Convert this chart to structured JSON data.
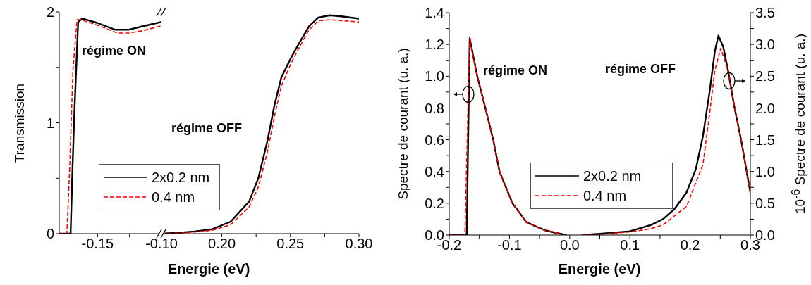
{
  "chart_data": [
    {
      "type": "line",
      "ylabel": "Transmission",
      "xlim": [
        -0.18,
        -0.1
      ],
      "xticks": [
        -0.15,
        {
          "value": -0.125,
          "label": null
        },
        {
          "value": -0.1,
          "label": "-0.10"
        }
      ],
      "ylim": [
        0,
        2
      ],
      "yticks": [
        0,
        {
          "value": 0.5,
          "label": null
        },
        1,
        {
          "value": 1.5,
          "label": null
        },
        2
      ],
      "marker": "none",
      "legend": "bottom right",
      "annotations": [
        "régime ON"
      ],
      "series": [
        {
          "name": "2x0.2 nm",
          "color": "#000000",
          "line_style": "solid",
          "x": [
            -0.18,
            -0.1711,
            -0.1698,
            -0.1683,
            -0.1652,
            -0.162,
            -0.15,
            -0.1365,
            -0.1254,
            -0.115,
            -0.1
          ],
          "values": [
            0,
            0,
            0.52,
            1.05,
            1.91,
            1.94,
            1.9,
            1.84,
            1.84,
            1.87,
            1.91
          ]
        },
        {
          "name": "0.4 nm",
          "color": "#ff0000",
          "line_style": "dashed",
          "x": [
            -0.18,
            -0.174,
            -0.1717,
            -0.1693,
            -0.1661,
            -0.163,
            -0.15,
            -0.1346,
            -0.1254,
            -0.115,
            -0.1
          ],
          "values": [
            0,
            0,
            0.63,
            1.47,
            1.93,
            1.93,
            1.88,
            1.81,
            1.81,
            1.83,
            1.875
          ]
        }
      ]
    },
    {
      "type": "line",
      "xlabel": "Energie (eV)",
      "xlim": [
        0.156,
        0.3
      ],
      "xticks": [
        {
          "value": 0.2,
          "label": "0.20"
        },
        {
          "value": 0.225,
          "label": null
        },
        0.25,
        {
          "value": 0.275,
          "label": null
        },
        {
          "value": 0.3,
          "label": "0.30"
        }
      ],
      "ylim": [
        0,
        2
      ],
      "yticks": [
        0,
        1,
        2
      ],
      "tick_labels": "x",
      "marker": "none",
      "annotations": [
        "régime OFF"
      ],
      "series": [
        {
          "color": "#000000",
          "line_style": "solid",
          "x": [
            0.156,
            0.17,
            0.18,
            0.193,
            0.2064,
            0.2199,
            0.2266,
            0.2333,
            0.2384,
            0.2434,
            0.2502,
            0.2569,
            0.2636,
            0.2704,
            0.2788,
            0.2872,
            0.3
          ],
          "values": [
            0,
            0.01,
            0.02,
            0.04,
            0.108,
            0.29,
            0.5,
            0.84,
            1.16,
            1.41,
            1.58,
            1.73,
            1.87,
            1.95,
            1.97,
            1.96,
            1.94
          ]
        },
        {
          "color": "#ff0000",
          "line_style": "dashed",
          "x": [
            0.156,
            0.17,
            0.18,
            0.193,
            0.2064,
            0.2199,
            0.2266,
            0.2333,
            0.2384,
            0.2434,
            0.2502,
            0.2569,
            0.2636,
            0.2704,
            0.2788,
            0.3
          ],
          "values": [
            0,
            0.005,
            0.015,
            0.03,
            0.08,
            0.24,
            0.42,
            0.74,
            1.06,
            1.33,
            1.53,
            1.69,
            1.84,
            1.92,
            1.93,
            1.91
          ]
        }
      ]
    },
    {
      "type": "line",
      "xlabel": "Energie (eV)",
      "ylabel": "Spectre de courant (u. a.)",
      "y2label": "10$^{-6}$ Spectre de courant (u. a.)",
      "xlim": [
        -0.2,
        0.3
      ],
      "xticks": [
        -0.2,
        {
          "value": -0.15,
          "label": null
        },
        -0.1,
        {
          "value": -0.05,
          "label": null
        },
        {
          "value": 0,
          "label": "0.0"
        },
        {
          "value": 0.05,
          "label": null
        },
        0.1,
        {
          "value": 0.15,
          "label": null
        },
        0.2,
        {
          "value": 0.25,
          "label": null
        },
        0.3
      ],
      "ylim": [
        0,
        1.4
      ],
      "yticks": [
        {
          "value": 0,
          "label": "0.0"
        },
        {
          "value": 0.1,
          "label": null
        },
        0.2,
        {
          "value": 0.3,
          "label": null
        },
        0.4,
        {
          "value": 0.5,
          "label": null
        },
        0.6,
        {
          "value": 0.7,
          "label": null
        },
        0.8,
        {
          "value": 0.9,
          "label": null
        },
        {
          "value": 1,
          "label": "1.0"
        },
        {
          "value": 1.1,
          "label": null
        },
        1.2,
        {
          "value": 1.3,
          "label": null
        },
        1.4
      ],
      "y2lim": [
        0,
        3.5
      ],
      "y2ticks": [
        {
          "value": 0,
          "label": "0.0"
        },
        {
          "value": 0.25,
          "label": null
        },
        0.5,
        {
          "value": 0.75,
          "label": null
        },
        {
          "value": 1,
          "label": "1.0"
        },
        {
          "value": 1.25,
          "label": null
        },
        1.5,
        {
          "value": 1.75,
          "label": null
        },
        {
          "value": 2,
          "label": "2.0"
        },
        {
          "value": 2.25,
          "label": null
        },
        2.5,
        {
          "value": 2.75,
          "label": null
        },
        {
          "value": 3,
          "label": "3.0"
        },
        {
          "value": 3.25,
          "label": null
        },
        3.5
      ],
      "marker": "none",
      "legend": "bottom",
      "annotations": [
        "régime ON",
        "régime OFF"
      ],
      "series": [
        {
          "name": "2x0.2 nm",
          "color": "#000000",
          "line_style": "solid",
          "x": [
            -0.2,
            -0.171,
            -0.166,
            -0.1535,
            -0.14,
            -0.127,
            -0.1165,
            -0.095,
            -0.0716,
            -0.041,
            -0.018,
            -0.005
          ],
          "values": [
            0,
            0,
            1.24,
            1,
            0.8,
            0.6,
            0.4,
            0.2,
            0.08,
            0.03,
            0.01,
            0
          ]
        },
        {
          "name": "0.4 nm",
          "color": "#ff0000",
          "line_style": "dashed",
          "x": [
            -0.2,
            -0.174,
            -0.166,
            -0.1535,
            -0.14,
            -0.127,
            -0.1165,
            -0.095,
            -0.0716,
            -0.041,
            -0.018,
            -0.005
          ],
          "values": [
            0,
            0,
            1.24,
            1,
            0.8,
            0.6,
            0.4,
            0.2,
            0.08,
            0.03,
            0.01,
            0
          ]
        },
        {
          "color": "#000000",
          "line_style": "solid",
          "axis": "y2",
          "x": [
            0.02,
            0.05,
            0.1,
            0.135,
            0.155,
            0.174,
            0.194,
            0.2096,
            0.2213,
            0.233,
            0.241,
            0.247,
            0.255,
            0.263,
            0.273,
            0.285,
            0.3
          ],
          "values": [
            0,
            0.02,
            0.06,
            0.16,
            0.25,
            0.41,
            0.67,
            1.04,
            1.56,
            2.3,
            2.89,
            3.14,
            2.96,
            2.59,
            2.04,
            1.48,
            0.67
          ]
        },
        {
          "color": "#ff0000",
          "line_style": "dashed",
          "axis": "y2",
          "x": [
            0.02,
            0.05,
            0.1,
            0.135,
            0.155,
            0.194,
            0.2213,
            0.233,
            0.241,
            0.2508,
            0.263,
            0.273,
            0.285,
            0.3
          ],
          "values": [
            0,
            0.01,
            0.05,
            0.1,
            0.16,
            0.45,
            1.11,
            1.96,
            2.59,
            2.94,
            2.59,
            2.04,
            1.48,
            0.67
          ]
        }
      ]
    }
  ]
}
